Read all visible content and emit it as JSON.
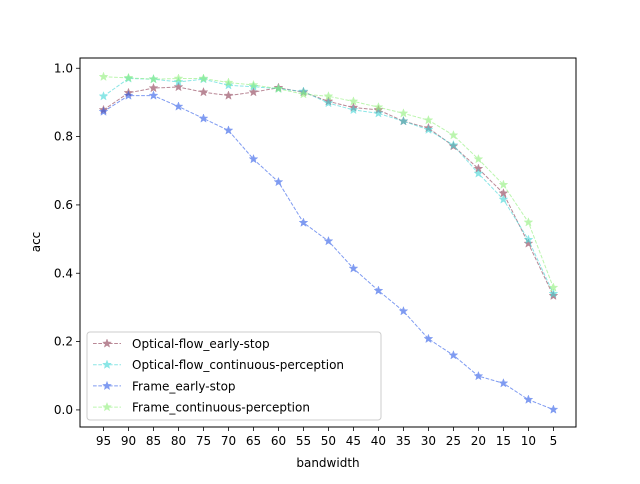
{
  "chart_data": {
    "type": "line",
    "title": "",
    "xlabel": "bandwidth",
    "ylabel": "acc",
    "categories": [
      "95",
      "90",
      "85",
      "80",
      "75",
      "70",
      "65",
      "60",
      "55",
      "50",
      "45",
      "40",
      "35",
      "30",
      "25",
      "20",
      "15",
      "10",
      "5"
    ],
    "ylim": [
      -0.05,
      1.03
    ],
    "yticks": [
      0.0,
      0.2,
      0.4,
      0.6,
      0.8,
      1.0
    ],
    "ytick_labels": [
      "0.0",
      "0.2",
      "0.4",
      "0.6",
      "0.8",
      "1.0"
    ],
    "grid": false,
    "legend_position": "lower-left",
    "series": [
      {
        "name": "Optical-flow_early-stop",
        "color": "#8b3a52",
        "values": [
          0.878,
          0.928,
          0.942,
          0.945,
          0.93,
          0.92,
          0.93,
          0.943,
          0.93,
          0.903,
          0.885,
          0.878,
          0.845,
          0.825,
          0.772,
          0.706,
          0.634,
          0.487,
          0.334
        ]
      },
      {
        "name": "Optical-flow_continuous-perception",
        "color": "#3fd6d6",
        "values": [
          0.918,
          0.97,
          0.968,
          0.96,
          0.968,
          0.95,
          0.946,
          0.94,
          0.932,
          0.898,
          0.878,
          0.868,
          0.845,
          0.82,
          0.775,
          0.692,
          0.616,
          0.498,
          0.34
        ]
      },
      {
        "name": "Frame_early-stop",
        "color": "#2b59e8",
        "values": [
          0.873,
          0.92,
          0.92,
          0.888,
          0.853,
          0.818,
          0.734,
          0.667,
          0.548,
          0.494,
          0.414,
          0.349,
          0.289,
          0.208,
          0.16,
          0.099,
          0.078,
          0.03,
          0.001
        ]
      },
      {
        "name": "Frame_continuous-perception",
        "color": "#8ff07a",
        "values": [
          0.975,
          0.972,
          0.968,
          0.97,
          0.97,
          0.958,
          0.951,
          0.94,
          0.924,
          0.918,
          0.903,
          0.886,
          0.868,
          0.848,
          0.804,
          0.734,
          0.659,
          0.549,
          0.358
        ]
      }
    ]
  }
}
